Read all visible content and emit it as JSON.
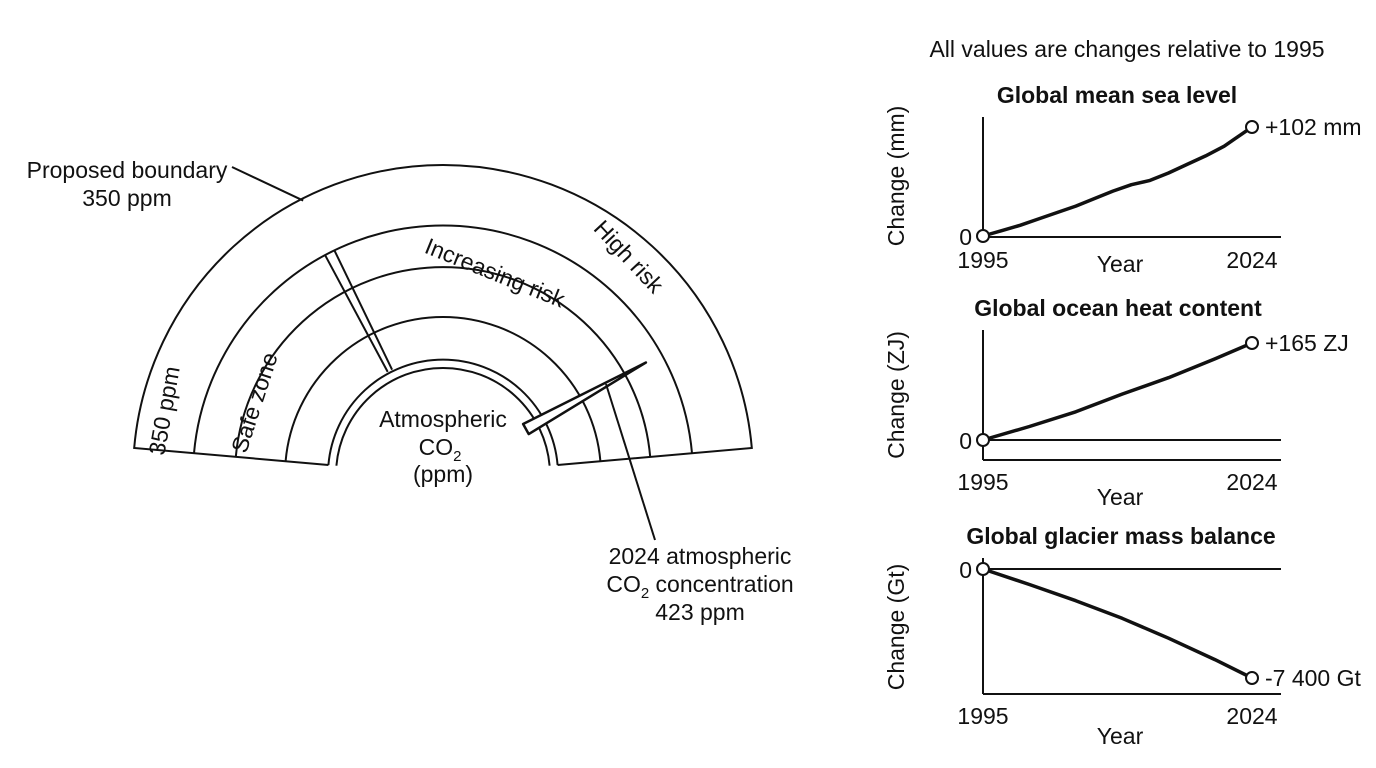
{
  "gauge": {
    "title_line1": "Atmospheric",
    "title_co": "CO",
    "title_sub": "2",
    "title_line3": "(ppm)",
    "zones": [
      "350 ppm",
      "Safe zone",
      "Increasing risk",
      "High risk"
    ],
    "boundary_label_line1": "Proposed boundary",
    "boundary_label_line2": "350 ppm",
    "boundary_value": 350,
    "current_label_line1": "2024 atmospheric",
    "current_label_co": "CO",
    "current_label_sub": "2",
    "current_label_conc": " concentration",
    "current_label_line3": "423 ppm",
    "current_value": 423
  },
  "header_note": "All values are changes relative to 1995",
  "chart_data": [
    {
      "type": "line",
      "title": "Global mean sea level",
      "ylabel": "Change (mm)",
      "xlabel": "Year",
      "x": [
        1995,
        1997,
        1999,
        2001,
        2003,
        2005,
        2007,
        2009,
        2011,
        2013,
        2015,
        2017,
        2019,
        2021,
        2022,
        2023,
        2024
      ],
      "values": [
        0,
        5,
        10,
        16,
        22,
        28,
        35,
        42,
        48,
        52,
        59,
        67,
        75,
        84,
        90,
        96,
        102
      ],
      "ylim": [
        0,
        110
      ],
      "x_ticks": [
        "1995",
        "2024"
      ],
      "y_ticks": [
        "0"
      ],
      "end_label": "+102 mm"
    },
    {
      "type": "line",
      "title": "Global ocean heat content",
      "ylabel": "Change (ZJ)",
      "xlabel": "Year",
      "x": [
        1995,
        2000,
        2005,
        2010,
        2015,
        2020,
        2024
      ],
      "values": [
        0,
        23,
        48,
        78,
        106,
        138,
        165
      ],
      "ylim": [
        -30,
        180
      ],
      "x_ticks": [
        "1995",
        "2024"
      ],
      "y_ticks": [
        "0"
      ],
      "end_label": "+165 ZJ"
    },
    {
      "type": "line",
      "title": "Global glacier mass balance",
      "ylabel": "Change (Gt)",
      "xlabel": "Year",
      "x": [
        1995,
        2000,
        2005,
        2010,
        2015,
        2020,
        2024
      ],
      "values": [
        0,
        -1050,
        -2150,
        -3350,
        -4700,
        -6150,
        -7400
      ],
      "ylim": [
        -8500,
        0
      ],
      "x_ticks": [
        "1995",
        "2024"
      ],
      "y_ticks": [
        "0"
      ],
      "end_label": "-7 400 Gt"
    }
  ]
}
